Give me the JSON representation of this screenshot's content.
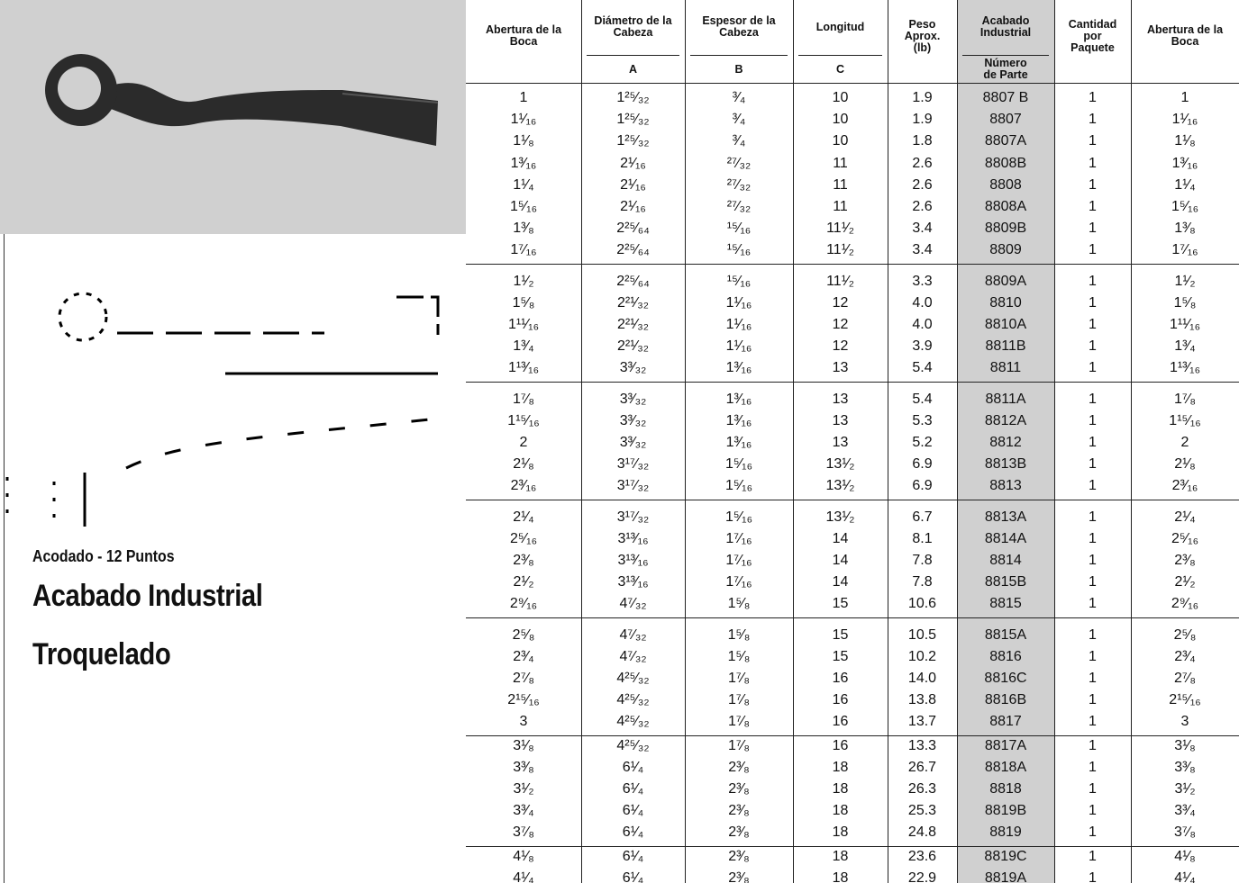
{
  "left": {
    "subtitle": "Acodado - 12 Puntos",
    "title_1": "Acabado Industrial",
    "title_2": "Troquelado"
  },
  "table": {
    "columns": [
      {
        "top": "Abertura de la\nBoca"
      },
      {
        "top": "Diámetro de la\nCabeza",
        "sub": "A"
      },
      {
        "top": "Espesor de la\nCabeza",
        "sub": "B"
      },
      {
        "top": "Longitud",
        "sub": "C"
      },
      {
        "top": "Peso\nAprox.\n(lb)"
      },
      {
        "top": "Acabado\nIndustrial",
        "sub": "Número\nde Parte"
      },
      {
        "top": "Cantidad\npor\nPaquete"
      },
      {
        "top": "Abertura de la\nBoca"
      }
    ],
    "groups": [
      {
        "rows": [
          [
            "1",
            "1²⁵⁄₃₂",
            "³⁄₄",
            "10",
            "1.9",
            "8807 B",
            "1",
            "1"
          ],
          [
            "1¹⁄₁₆",
            "1²⁵⁄₃₂",
            "³⁄₄",
            "10",
            "1.9",
            "8807",
            "1",
            "1¹⁄₁₆"
          ],
          [
            "1¹⁄₈",
            "1²⁵⁄₃₂",
            "³⁄₄",
            "10",
            "1.8",
            "8807A",
            "1",
            "1¹⁄₈"
          ],
          [
            "1³⁄₁₆",
            "2¹⁄₁₆",
            "²⁷⁄₃₂",
            "11",
            "2.6",
            "8808B",
            "1",
            "1³⁄₁₆"
          ],
          [
            "1¹⁄₄",
            "2¹⁄₁₆",
            "²⁷⁄₃₂",
            "11",
            "2.6",
            "8808",
            "1",
            "1¹⁄₄"
          ],
          [
            "1⁵⁄₁₆",
            "2¹⁄₁₆",
            "²⁷⁄₃₂",
            "11",
            "2.6",
            "8808A",
            "1",
            "1⁵⁄₁₆"
          ],
          [
            "1³⁄₈",
            "2²⁵⁄₆₄",
            "¹⁵⁄₁₆",
            "11¹⁄₂",
            "3.4",
            "8809B",
            "1",
            "1³⁄₈"
          ],
          [
            "1⁷⁄₁₆",
            "2²⁵⁄₆₄",
            "¹⁵⁄₁₆",
            "11¹⁄₂",
            "3.4",
            "8809",
            "1",
            "1⁷⁄₁₆"
          ]
        ]
      },
      {
        "rows": [
          [
            "1¹⁄₂",
            "2²⁵⁄₆₄",
            "¹⁵⁄₁₆",
            "11¹⁄₂",
            "3.3",
            "8809A",
            "1",
            "1¹⁄₂"
          ],
          [
            "1⁵⁄₈",
            "2²¹⁄₃₂",
            "1¹⁄₁₆",
            "12",
            "4.0",
            "8810",
            "1",
            "1⁵⁄₈"
          ],
          [
            "1¹¹⁄₁₆",
            "2²¹⁄₃₂",
            "1¹⁄₁₆",
            "12",
            "4.0",
            "8810A",
            "1",
            "1¹¹⁄₁₆"
          ],
          [
            "1³⁄₄",
            "2²¹⁄₃₂",
            "1¹⁄₁₆",
            "12",
            "3.9",
            "8811B",
            "1",
            "1³⁄₄"
          ],
          [
            "1¹³⁄₁₆",
            "3³⁄₃₂",
            "1³⁄₁₆",
            "13",
            "5.4",
            "8811",
            "1",
            "1¹³⁄₁₆"
          ]
        ]
      },
      {
        "rows": [
          [
            "1⁷⁄₈",
            "3³⁄₃₂",
            "1³⁄₁₆",
            "13",
            "5.4",
            "8811A",
            "1",
            "1⁷⁄₈"
          ],
          [
            "1¹⁵⁄₁₆",
            "3³⁄₃₂",
            "1³⁄₁₆",
            "13",
            "5.3",
            "8812A",
            "1",
            "1¹⁵⁄₁₆"
          ],
          [
            "2",
            "3³⁄₃₂",
            "1³⁄₁₆",
            "13",
            "5.2",
            "8812",
            "1",
            "2"
          ],
          [
            "2¹⁄₈",
            "3¹⁷⁄₃₂",
            "1⁵⁄₁₆",
            "13¹⁄₂",
            "6.9",
            "8813B",
            "1",
            "2¹⁄₈"
          ],
          [
            "2³⁄₁₆",
            "3¹⁷⁄₃₂",
            "1⁵⁄₁₆",
            "13¹⁄₂",
            "6.9",
            "8813",
            "1",
            "2³⁄₁₆"
          ]
        ]
      },
      {
        "rows": [
          [
            "2¹⁄₄",
            "3¹⁷⁄₃₂",
            "1⁵⁄₁₆",
            "13¹⁄₂",
            "6.7",
            "8813A",
            "1",
            "2¹⁄₄"
          ],
          [
            "2⁵⁄₁₆",
            "3¹³⁄₁₆",
            "1⁷⁄₁₆",
            "14",
            "8.1",
            "8814A",
            "1",
            "2⁵⁄₁₆"
          ],
          [
            "2³⁄₈",
            "3¹³⁄₁₆",
            "1⁷⁄₁₆",
            "14",
            "7.8",
            "8814",
            "1",
            "2³⁄₈"
          ],
          [
            "2¹⁄₂",
            "3¹³⁄₁₆",
            "1⁷⁄₁₆",
            "14",
            "7.8",
            "8815B",
            "1",
            "2¹⁄₂"
          ],
          [
            "2⁹⁄₁₆",
            "4⁷⁄₃₂",
            "1⁵⁄₈",
            "15",
            "10.6",
            "8815",
            "1",
            "2⁹⁄₁₆"
          ]
        ]
      },
      {
        "rows": [
          [
            "2⁵⁄₈",
            "4⁷⁄₃₂",
            "1⁵⁄₈",
            "15",
            "10.5",
            "8815A",
            "1",
            "2⁵⁄₈"
          ],
          [
            "2³⁄₄",
            "4⁷⁄₃₂",
            "1⁵⁄₈",
            "15",
            "10.2",
            "8816",
            "1",
            "2³⁄₄"
          ],
          [
            "2⁷⁄₈",
            "4²⁵⁄₃₂",
            "1⁷⁄₈",
            "16",
            "14.0",
            "8816C",
            "1",
            "2⁷⁄₈"
          ],
          [
            "2¹⁵⁄₁₆",
            "4²⁵⁄₃₂",
            "1⁷⁄₈",
            "16",
            "13.8",
            "8816B",
            "1",
            "2¹⁵⁄₁₆"
          ],
          [
            "3",
            "4²⁵⁄₃₂",
            "1⁷⁄₈",
            "16",
            "13.7",
            "8817",
            "1",
            "3"
          ]
        ]
      },
      {
        "rows": [
          [
            "3¹⁄₈",
            "4²⁵⁄₃₂",
            "1⁷⁄₈",
            "16",
            "13.3",
            "8817A",
            "1",
            "3¹⁄₈"
          ],
          [
            "3³⁄₈",
            "6¹⁄₄",
            "2³⁄₈",
            "18",
            "26.7",
            "8818A",
            "1",
            "3³⁄₈"
          ],
          [
            "3¹⁄₂",
            "6¹⁄₄",
            "2³⁄₈",
            "18",
            "26.3",
            "8818",
            "1",
            "3¹⁄₂"
          ],
          [
            "3³⁄₄",
            "6¹⁄₄",
            "2³⁄₈",
            "18",
            "25.3",
            "8819B",
            "1",
            "3³⁄₄"
          ],
          [
            "3⁷⁄₈",
            "6¹⁄₄",
            "2³⁄₈",
            "18",
            "24.8",
            "8819",
            "1",
            "3⁷⁄₈"
          ]
        ]
      },
      {
        "rows": [
          [
            "4¹⁄₈",
            "6¹⁄₄",
            "2³⁄₈",
            "18",
            "23.6",
            "8819C",
            "1",
            "4¹⁄₈"
          ],
          [
            "4¹⁄₄",
            "6¹⁄₄",
            "2³⁄₈",
            "18",
            "22.9",
            "8819A",
            "1",
            "4¹⁄₄"
          ]
        ]
      }
    ]
  }
}
